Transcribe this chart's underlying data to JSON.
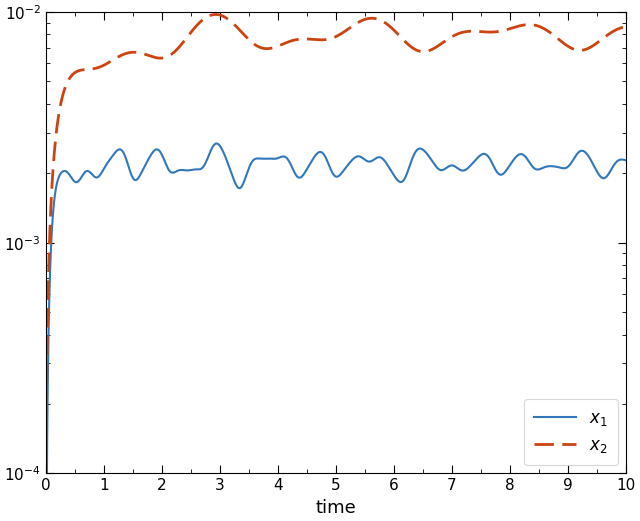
{
  "title": "",
  "xlabel": "time",
  "ylabel": "",
  "xlim": [
    0,
    10
  ],
  "ylim_log": [
    0.0001,
    0.01
  ],
  "x1_color": "#3377bb",
  "x2_color": "#cc4411",
  "x1_label": "$x_1$",
  "x2_label": "$x_2$",
  "legend_loc": "lower right",
  "figsize": [
    6.4,
    5.21
  ],
  "dpi": 100
}
